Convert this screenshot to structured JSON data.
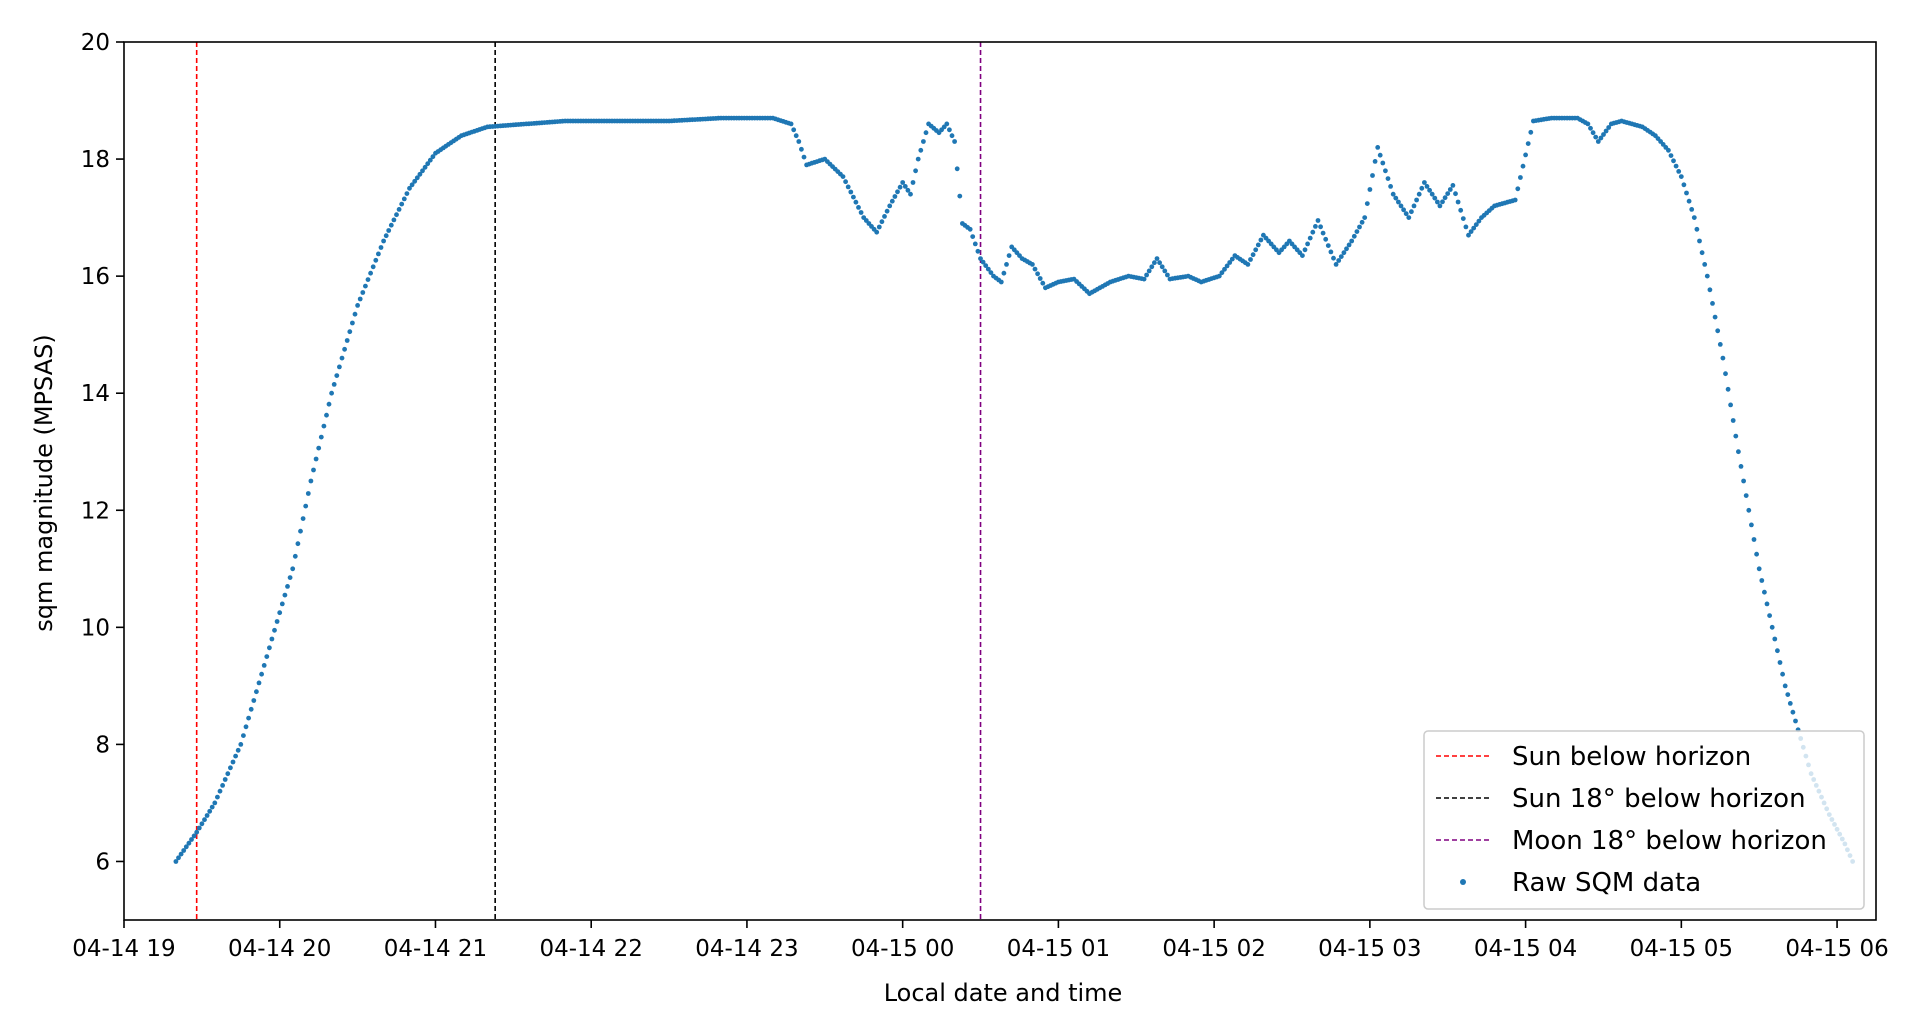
{
  "chart_data": {
    "type": "scatter",
    "title": "",
    "xlabel": "Local date and time",
    "ylabel": "sqm magnitude (MPSAS)",
    "x_unit": "hours",
    "xlim": [
      "04-14 19:00",
      "04-15 06:15"
    ],
    "ylim": [
      5,
      20
    ],
    "x_ticks": [
      {
        "value": "04-14 19:00",
        "label": "04-14 19"
      },
      {
        "value": "04-14 20:00",
        "label": "04-14 20"
      },
      {
        "value": "04-14 21:00",
        "label": "04-14 21"
      },
      {
        "value": "04-14 22:00",
        "label": "04-14 22"
      },
      {
        "value": "04-14 23:00",
        "label": "04-14 23"
      },
      {
        "value": "04-15 00:00",
        "label": "04-15 00"
      },
      {
        "value": "04-15 01:00",
        "label": "04-15 01"
      },
      {
        "value": "04-15 02:00",
        "label": "04-15 02"
      },
      {
        "value": "04-15 03:00",
        "label": "04-15 03"
      },
      {
        "value": "04-15 04:00",
        "label": "04-15 04"
      },
      {
        "value": "04-15 05:00",
        "label": "04-15 05"
      },
      {
        "value": "04-15 06:00",
        "label": "04-15 06"
      }
    ],
    "y_ticks": [
      {
        "value": 6,
        "label": "6"
      },
      {
        "value": 8,
        "label": "8"
      },
      {
        "value": 10,
        "label": "10"
      },
      {
        "value": 12,
        "label": "12"
      },
      {
        "value": 14,
        "label": "14"
      },
      {
        "value": 16,
        "label": "16"
      },
      {
        "value": 18,
        "label": "18"
      },
      {
        "value": 20,
        "label": "20"
      }
    ],
    "grid": false,
    "legend_position": "bottom-right",
    "vlines": [
      {
        "name": "Sun below horizon",
        "x": "04-14 19:28",
        "color": "#ff0000",
        "style": "dashed"
      },
      {
        "name": "Sun 18° below horizon",
        "x": "04-14 21:23",
        "color": "#000000",
        "style": "dashed"
      },
      {
        "name": "Moon 18° below horizon",
        "x": "04-15 00:30",
        "color": "#800080",
        "style": "dashed"
      }
    ],
    "series": [
      {
        "name": "Raw SQM data",
        "color": "#1f77b4",
        "marker": "dot",
        "points": [
          [
            "04-14 19:20",
            6.0
          ],
          [
            "04-14 19:28",
            6.5
          ],
          [
            "04-14 19:35",
            7.0
          ],
          [
            "04-14 19:45",
            8.0
          ],
          [
            "04-14 19:55",
            9.5
          ],
          [
            "04-14 20:05",
            11.0
          ],
          [
            "04-14 20:12",
            12.5
          ],
          [
            "04-14 20:20",
            14.0
          ],
          [
            "04-14 20:30",
            15.5
          ],
          [
            "04-14 20:40",
            16.6
          ],
          [
            "04-14 20:50",
            17.5
          ],
          [
            "04-14 21:00",
            18.1
          ],
          [
            "04-14 21:10",
            18.4
          ],
          [
            "04-14 21:20",
            18.55
          ],
          [
            "04-14 21:35",
            18.6
          ],
          [
            "04-14 21:50",
            18.65
          ],
          [
            "04-14 22:10",
            18.65
          ],
          [
            "04-14 22:30",
            18.65
          ],
          [
            "04-14 22:50",
            18.7
          ],
          [
            "04-14 23:10",
            18.7
          ],
          [
            "04-14 23:17",
            18.6
          ],
          [
            "04-14 23:20",
            18.3
          ],
          [
            "04-14 23:23",
            17.9
          ],
          [
            "04-14 23:30",
            18.0
          ],
          [
            "04-14 23:37",
            17.7
          ],
          [
            "04-14 23:45",
            17.0
          ],
          [
            "04-14 23:50",
            16.75
          ],
          [
            "04-14 23:55",
            17.2
          ],
          [
            "04-15 00:00",
            17.6
          ],
          [
            "04-15 00:03",
            17.4
          ],
          [
            "04-15 00:06",
            18.0
          ],
          [
            "04-15 00:10",
            18.6
          ],
          [
            "04-15 00:14",
            18.45
          ],
          [
            "04-15 00:17",
            18.6
          ],
          [
            "04-15 00:20",
            18.3
          ],
          [
            "04-15 00:23",
            16.9
          ],
          [
            "04-15 00:26",
            16.8
          ],
          [
            "04-15 00:30",
            16.3
          ],
          [
            "04-15 00:35",
            16.0
          ],
          [
            "04-15 00:38",
            15.9
          ],
          [
            "04-15 00:42",
            16.5
          ],
          [
            "04-15 00:46",
            16.3
          ],
          [
            "04-15 00:50",
            16.2
          ],
          [
            "04-15 00:55",
            15.8
          ],
          [
            "04-15 01:00",
            15.9
          ],
          [
            "04-15 01:06",
            15.95
          ],
          [
            "04-15 01:12",
            15.7
          ],
          [
            "04-15 01:20",
            15.9
          ],
          [
            "04-15 01:27",
            16.0
          ],
          [
            "04-15 01:33",
            15.95
          ],
          [
            "04-15 01:38",
            16.3
          ],
          [
            "04-15 01:43",
            15.95
          ],
          [
            "04-15 01:50",
            16.0
          ],
          [
            "04-15 01:55",
            15.9
          ],
          [
            "04-15 02:02",
            16.0
          ],
          [
            "04-15 02:08",
            16.35
          ],
          [
            "04-15 02:13",
            16.2
          ],
          [
            "04-15 02:19",
            16.7
          ],
          [
            "04-15 02:25",
            16.4
          ],
          [
            "04-15 02:29",
            16.6
          ],
          [
            "04-15 02:34",
            16.35
          ],
          [
            "04-15 02:40",
            16.95
          ],
          [
            "04-15 02:47",
            16.2
          ],
          [
            "04-15 02:53",
            16.6
          ],
          [
            "04-15 02:58",
            17.0
          ],
          [
            "04-15 03:03",
            18.2
          ],
          [
            "04-15 03:09",
            17.4
          ],
          [
            "04-15 03:15",
            17.0
          ],
          [
            "04-15 03:21",
            17.6
          ],
          [
            "04-15 03:27",
            17.2
          ],
          [
            "04-15 03:32",
            17.55
          ],
          [
            "04-15 03:38",
            16.7
          ],
          [
            "04-15 03:43",
            17.0
          ],
          [
            "04-15 03:48",
            17.2
          ],
          [
            "04-15 03:56",
            17.3
          ],
          [
            "04-15 04:03",
            18.65
          ],
          [
            "04-15 04:10",
            18.7
          ],
          [
            "04-15 04:20",
            18.7
          ],
          [
            "04-15 04:24",
            18.6
          ],
          [
            "04-15 04:28",
            18.3
          ],
          [
            "04-15 04:33",
            18.6
          ],
          [
            "04-15 04:37",
            18.65
          ],
          [
            "04-15 04:45",
            18.55
          ],
          [
            "04-15 04:50",
            18.4
          ],
          [
            "04-15 04:55",
            18.15
          ],
          [
            "04-15 05:00",
            17.7
          ],
          [
            "04-15 05:05",
            17.0
          ],
          [
            "04-15 05:10",
            16.0
          ],
          [
            "04-15 05:16",
            14.6
          ],
          [
            "04-15 05:22",
            13.0
          ],
          [
            "04-15 05:30",
            11.0
          ],
          [
            "04-15 05:40",
            9.0
          ],
          [
            "04-15 05:50",
            7.5
          ],
          [
            "04-15 05:57",
            6.8
          ],
          [
            "04-15 06:03",
            6.3
          ],
          [
            "04-15 06:06",
            6.0
          ]
        ]
      }
    ],
    "legend": [
      {
        "label": "Sun below horizon",
        "kind": "line",
        "color": "#ff0000"
      },
      {
        "label": "Sun 18° below horizon",
        "kind": "line",
        "color": "#000000"
      },
      {
        "label": "Moon 18° below horizon",
        "kind": "line",
        "color": "#800080"
      },
      {
        "label": "Raw SQM data",
        "kind": "dot",
        "color": "#1f77b4"
      }
    ]
  }
}
